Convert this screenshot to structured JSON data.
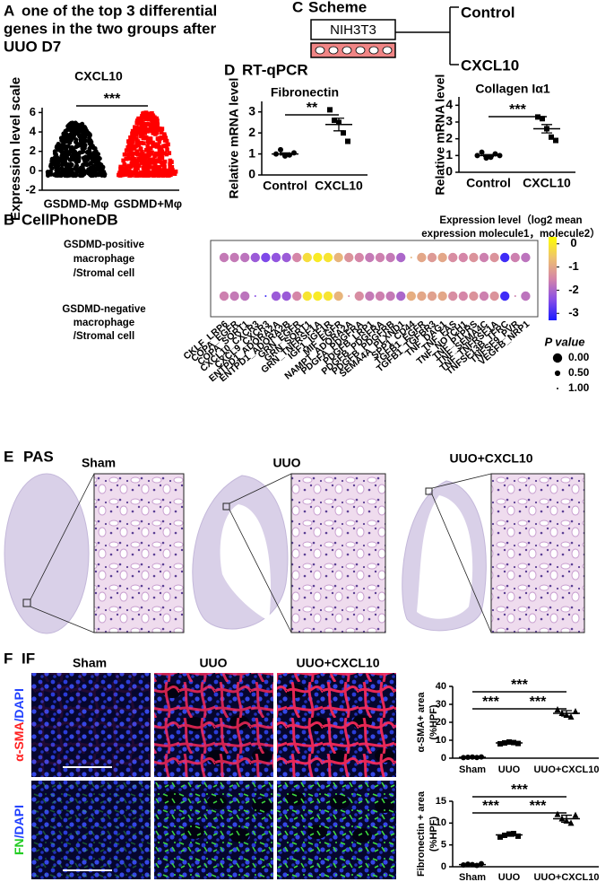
{
  "figure": {
    "A": {
      "letter": "A",
      "title": [
        "one of the top 3 differential",
        "genes in the two groups after",
        "UUO D7"
      ]
    },
    "C": {
      "letter": "C",
      "title": "Scheme",
      "cell_line": "NIH3T3",
      "groups": [
        "Control",
        "CXCL10"
      ]
    },
    "D": {
      "letter": "D",
      "title": "RT-qPCR"
    },
    "B": {
      "letter": "B",
      "title": "CellPhoneDB"
    },
    "E": {
      "letter": "E",
      "title": "PAS",
      "columns": [
        "Sham",
        "UUO",
        "UUO+CXCL10"
      ]
    },
    "F": {
      "letter": "F",
      "title": "IF",
      "columns": [
        "Sham",
        "UUO",
        "UUO+CXCL10"
      ],
      "rows": [
        [
          "α-SMA",
          "/DAPI"
        ],
        [
          "FN",
          "/DAPI"
        ]
      ]
    }
  },
  "chart_data": [
    {
      "type": "distribution",
      "title": "CXCL10",
      "ylabel": "Expression level scale",
      "categories": [
        "GSDMD-Mφ",
        "GSDMD+Mφ"
      ],
      "ranges": [
        [
          -0.5,
          5
        ],
        [
          -0.5,
          6
        ]
      ],
      "colors": [
        "#000000",
        "#ff0000"
      ],
      "markers": [
        "circle",
        "square"
      ],
      "ylim": [
        -2,
        6.5
      ],
      "yticks": [
        -2,
        0,
        2,
        4,
        6
      ],
      "significance": [
        "***"
      ]
    },
    {
      "type": "strip",
      "title": "Fibronectin",
      "ylabel": "Relative mRNA level",
      "categories": [
        "Control",
        "CXCL10"
      ],
      "points": [
        [
          1.0,
          1.2,
          0.9,
          0.95,
          1.05
        ],
        [
          3.1,
          2.6,
          2.5,
          2.0,
          1.6
        ]
      ],
      "means": [
        1.0,
        2.4
      ],
      "errors": [
        0.05,
        0.3
      ],
      "markers": [
        "circle",
        "square"
      ],
      "color": "#000000",
      "ylim": [
        0,
        3.5
      ],
      "yticks": [
        0,
        1,
        2,
        3
      ],
      "significance": [
        "**"
      ]
    },
    {
      "type": "strip",
      "title": "Collagen Iα1",
      "ylabel": "Relative mRNA level",
      "categories": [
        "Control",
        "CXCL10"
      ],
      "points": [
        [
          1.0,
          1.2,
          0.85,
          0.9,
          1.1,
          1.0
        ],
        [
          3.3,
          3.2,
          2.6,
          2.1,
          1.9
        ]
      ],
      "means": [
        1.0,
        2.6
      ],
      "errors": [
        0.06,
        0.25
      ],
      "markers": [
        "circle",
        "square"
      ],
      "color": "#000000",
      "ylim": [
        0,
        4.5
      ],
      "yticks": [
        0,
        1,
        2,
        3,
        4
      ],
      "significance": [
        "***"
      ]
    },
    {
      "type": "dot",
      "rows": [
        [
          "GSDMD-positive",
          "macrophage",
          "/Stromal cell"
        ],
        [
          "GSDMD-negative",
          "macrophage",
          "/Stromal cell"
        ]
      ],
      "categories": [
        "CKLF_LRP6",
        "COPA_EGFR",
        "COPA_SORT1",
        "CXCL10_CXCR3",
        "CXCL9_CXCR3",
        "ENTPD1_ADORA2A",
        "ENTPD1_ADORA2B",
        "GRN_EGFR",
        "GRN_SORT1",
        "GRN_TNFRSF1A",
        "IGF1_IGF1R",
        "MIF_EGFR",
        "NAMPT_ADORA2A",
        "PDGFA_PDGFRA",
        "PDGFB_LRP1",
        "PDGFB_PDGFRA",
        "PDGFB_PDGFRB",
        "SEMA4A_PLXND1",
        "SPP1_CD44",
        "TGFB1_EGFR",
        "TGFB1_TGFBR3",
        "TNF_DAG1",
        "TNF_FAS",
        "TNF_NOTCH1",
        "TNF_PTPRS",
        "TNF_SEMA4C",
        "TNF_TNFRSF1A",
        "TNFSF13B_TFRC",
        "TNFSF9_PVR",
        "VEGFB_NRP1"
      ],
      "expression": [
        [
          -1.7,
          -1.7,
          -1.8,
          -2.2,
          -2.5,
          -2.3,
          -2.2,
          -1.5,
          -0.2,
          0,
          -0.1,
          -0.8,
          -1.3,
          -1.5,
          -1.7,
          -1.6,
          -1.7,
          -2.0,
          -0.8,
          -1.0,
          -1.2,
          -1.0,
          -1.4,
          -1.5,
          -1.3,
          -1.6,
          -1.3,
          -3.0,
          -1.6,
          -1.8
        ],
        [
          -1.6,
          -1.7,
          -1.8,
          -2.4,
          -3.0,
          -2.2,
          -2.2,
          -1.5,
          -0.1,
          0,
          -0.1,
          -0.8,
          -1.5,
          -1.4,
          -1.7,
          -1.6,
          -1.7,
          -2.0,
          -0.9,
          -1.0,
          -1.1,
          -1.0,
          -1.4,
          -1.5,
          -1.3,
          -1.6,
          -1.3,
          -3.0,
          -1.6,
          -1.8
        ]
      ],
      "pvalues": [
        [
          0,
          0,
          0,
          0,
          0,
          0,
          0,
          0,
          0,
          0,
          0,
          0,
          0,
          0,
          0,
          0,
          0,
          0,
          1,
          0,
          0,
          0,
          0,
          0,
          0,
          0,
          0,
          0,
          0,
          0
        ],
        [
          0,
          0,
          0,
          1,
          1,
          0,
          0,
          0,
          0,
          0,
          0,
          0,
          1,
          0,
          0,
          0,
          0,
          0,
          0,
          0,
          0,
          0,
          0,
          0,
          0,
          0,
          0,
          0,
          1,
          0
        ]
      ],
      "color_label": [
        "Expression level（log2 mean",
        "expression molecule1，molecule2）"
      ],
      "colormap": [
        "#1a1aff",
        "#8a4fe6",
        "#d586a8",
        "#eec26e",
        "#ffff00"
      ],
      "color_lim": [
        -3.3,
        0.3
      ],
      "color_ticks": [
        0,
        -1,
        -2,
        -3
      ],
      "size_label": "P value",
      "size_ticks": [
        {
          "value": 0,
          "label": "0.00"
        },
        {
          "value": 0.5,
          "label": "0.50"
        },
        {
          "value": 1,
          "label": "1.00"
        }
      ]
    },
    {
      "type": "strip",
      "ylabel": [
        "α-SMA+ area",
        "(%HPF)"
      ],
      "categories": [
        "Sham",
        "UUO",
        "UUO+CXCL10"
      ],
      "points": [
        [
          0.3,
          0.5,
          0.6,
          0.4,
          0.7
        ],
        [
          8.0,
          8.5,
          9.0,
          8.7,
          8.2
        ],
        [
          27,
          25,
          24,
          23,
          26
        ]
      ],
      "means": [
        0.5,
        8.5,
        25
      ],
      "errors": [
        0.2,
        0.5,
        1.5
      ],
      "markers": [
        "circle",
        "square",
        "triangle"
      ],
      "color": "#000000",
      "ylim": [
        0,
        40
      ],
      "yticks": [
        0,
        10,
        20,
        30,
        40
      ],
      "significance": [
        "***",
        "***",
        "***"
      ]
    },
    {
      "type": "strip",
      "ylabel": [
        "Fibronectin + area",
        "(%HPF)"
      ],
      "categories": [
        "Sham",
        "UUO",
        "UUO+CXCL10"
      ],
      "points": [
        [
          0.4,
          0.6,
          0.5,
          0.3,
          0.7
        ],
        [
          6.8,
          7.2,
          7.5,
          7.6,
          7.0
        ],
        [
          12,
          11,
          10.5,
          10,
          11.8
        ]
      ],
      "means": [
        0.5,
        7.3,
        11
      ],
      "errors": [
        0.1,
        0.3,
        0.8
      ],
      "markers": [
        "circle",
        "square",
        "triangle"
      ],
      "color": "#000000",
      "ylim": [
        0,
        15
      ],
      "yticks": [
        0,
        5,
        10,
        15
      ],
      "significance": [
        "***",
        "***",
        "***"
      ]
    }
  ]
}
